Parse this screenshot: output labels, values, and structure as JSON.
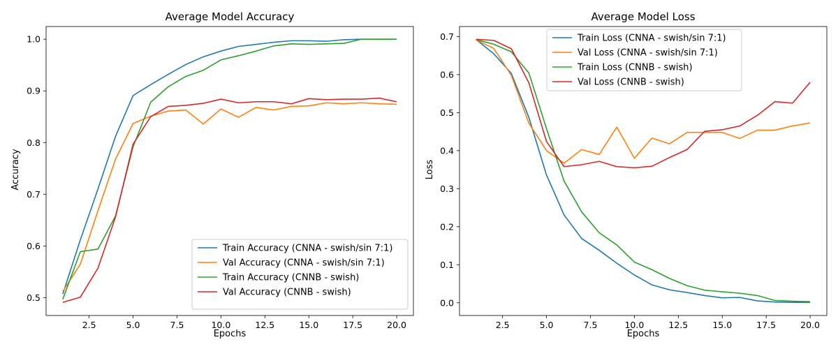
{
  "chart_data": [
    {
      "type": "line",
      "title": "Average Model Accuracy",
      "xlabel": "Epochs",
      "ylabel": "Accuracy",
      "xlim": [
        0.05,
        20.95
      ],
      "ylim": [
        0.4655,
        1.0245
      ],
      "xticks": [
        "2.5",
        "5.0",
        "7.5",
        "10.0",
        "12.5",
        "15.0",
        "17.5",
        "20.0"
      ],
      "yticks": [
        "0.5",
        "0.6",
        "0.7",
        "0.8",
        "0.9",
        "1.0"
      ],
      "legend_position": "lower-right",
      "x": [
        1,
        2,
        3,
        4,
        5,
        6,
        7,
        8,
        9,
        10,
        11,
        12,
        13,
        14,
        15,
        16,
        17,
        18,
        19,
        20
      ],
      "series": [
        {
          "name": "Train Accuracy (CNNA - swish/sin 7:1)",
          "color": "#1f77b4",
          "values": [
            0.507,
            0.612,
            0.71,
            0.812,
            0.891,
            0.912,
            0.932,
            0.951,
            0.966,
            0.977,
            0.986,
            0.99,
            0.994,
            0.997,
            0.997,
            0.996,
            0.999,
            1.0,
            1.0,
            1.0
          ]
        },
        {
          "name": "Val Accuracy (CNNA - swish/sin 7:1)",
          "color": "#ff7f0e",
          "values": [
            0.512,
            0.565,
            0.668,
            0.768,
            0.837,
            0.851,
            0.861,
            0.863,
            0.836,
            0.865,
            0.849,
            0.868,
            0.863,
            0.87,
            0.871,
            0.877,
            0.875,
            0.877,
            0.875,
            0.874
          ]
        },
        {
          "name": "Train Accuracy (CNNB - swish)",
          "color": "#2ca02c",
          "values": [
            0.497,
            0.589,
            0.594,
            0.658,
            0.792,
            0.878,
            0.908,
            0.928,
            0.94,
            0.96,
            0.968,
            0.977,
            0.987,
            0.991,
            0.99,
            0.991,
            0.992,
            1.0,
            1.0,
            1.0
          ]
        },
        {
          "name": "Val Accuracy (CNNB - swish)",
          "color": "#d62728",
          "values": [
            0.491,
            0.501,
            0.557,
            0.656,
            0.797,
            0.85,
            0.87,
            0.872,
            0.876,
            0.884,
            0.877,
            0.879,
            0.879,
            0.875,
            0.885,
            0.883,
            0.884,
            0.884,
            0.886,
            0.879
          ]
        }
      ]
    },
    {
      "type": "line",
      "title": "Average Model Loss",
      "xlabel": "Epochs",
      "ylabel": "Loss",
      "xlim": [
        0.05,
        20.95
      ],
      "ylim": [
        -0.0335,
        0.7265
      ],
      "xticks": [
        "2.5",
        "5.0",
        "7.5",
        "10.0",
        "12.5",
        "15.0",
        "17.5",
        "20.0"
      ],
      "yticks": [
        "0.0",
        "0.1",
        "0.2",
        "0.3",
        "0.4",
        "0.5",
        "0.6",
        "0.7"
      ],
      "legend_position": "upper-center",
      "x": [
        1,
        2,
        3,
        4,
        5,
        6,
        7,
        8,
        9,
        10,
        11,
        12,
        13,
        14,
        15,
        16,
        17,
        18,
        19,
        20
      ],
      "series": [
        {
          "name": "Train Loss (CNNA - swish/sin 7:1)",
          "color": "#1f77b4",
          "values": [
            0.692,
            0.655,
            0.603,
            0.487,
            0.336,
            0.231,
            0.169,
            0.138,
            0.104,
            0.073,
            0.047,
            0.034,
            0.027,
            0.019,
            0.013,
            0.014,
            0.005,
            0.002,
            0.001,
            0.001
          ]
        },
        {
          "name": "Val Loss (CNNA - swish/sin 7:1)",
          "color": "#ff7f0e",
          "values": [
            0.691,
            0.669,
            0.598,
            0.472,
            0.4,
            0.367,
            0.403,
            0.39,
            0.462,
            0.38,
            0.433,
            0.418,
            0.448,
            0.448,
            0.448,
            0.432,
            0.454,
            0.454,
            0.465,
            0.473
          ]
        },
        {
          "name": "Train Loss (CNNB - swish)",
          "color": "#2ca02c",
          "values": [
            0.692,
            0.68,
            0.66,
            0.604,
            0.458,
            0.32,
            0.239,
            0.184,
            0.152,
            0.107,
            0.087,
            0.064,
            0.045,
            0.033,
            0.029,
            0.025,
            0.019,
            0.006,
            0.004,
            0.003
          ]
        },
        {
          "name": "Val Loss (CNNB - swish)",
          "color": "#d62728",
          "values": [
            0.693,
            0.69,
            0.668,
            0.578,
            0.424,
            0.358,
            0.363,
            0.372,
            0.358,
            0.355,
            0.359,
            0.382,
            0.403,
            0.451,
            0.455,
            0.465,
            0.493,
            0.529,
            0.525,
            0.58
          ]
        }
      ]
    }
  ]
}
